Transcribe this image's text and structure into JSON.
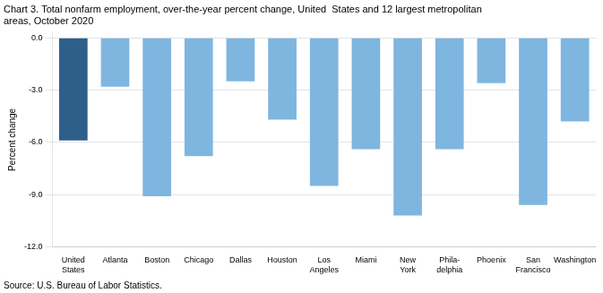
{
  "chart_data": {
    "type": "bar",
    "title": "Chart 3. Total nonfarm employment, over-the-year percent change, United  States and 12 largest metropolitan\nareas, October 2020",
    "ylabel": "Percent change",
    "source": "Source: U.S. Bureau of Labor Statistics.",
    "categories": [
      "United\nStates",
      "Atlanta",
      "Boston",
      "Chicago",
      "Dallas",
      "Houston",
      "Los\nAngeles",
      "Miami",
      "New\nYork",
      "Phila-\ndelphia",
      "Phoenix",
      "San\nFrancisco",
      "Washington"
    ],
    "values": [
      -5.9,
      -2.8,
      -9.1,
      -6.8,
      -2.5,
      -4.7,
      -8.5,
      -6.4,
      -10.2,
      -6.4,
      -2.6,
      -9.6,
      -4.8
    ],
    "colors": [
      "#2e5f8a",
      "#7eb6e0",
      "#7eb6e0",
      "#7eb6e0",
      "#7eb6e0",
      "#7eb6e0",
      "#7eb6e0",
      "#7eb6e0",
      "#7eb6e0",
      "#7eb6e0",
      "#7eb6e0",
      "#7eb6e0",
      "#7eb6e0"
    ],
    "ylim": [
      -12.0,
      0.3
    ],
    "yticks": [
      {
        "value": 0.0,
        "label": "0.0"
      },
      {
        "value": -3.0,
        "label": "-3.0"
      },
      {
        "value": -6.0,
        "label": "-6.0"
      },
      {
        "value": -9.0,
        "label": "-9.0"
      },
      {
        "value": -12.0,
        "label": "-12.0"
      }
    ],
    "grid": true
  }
}
